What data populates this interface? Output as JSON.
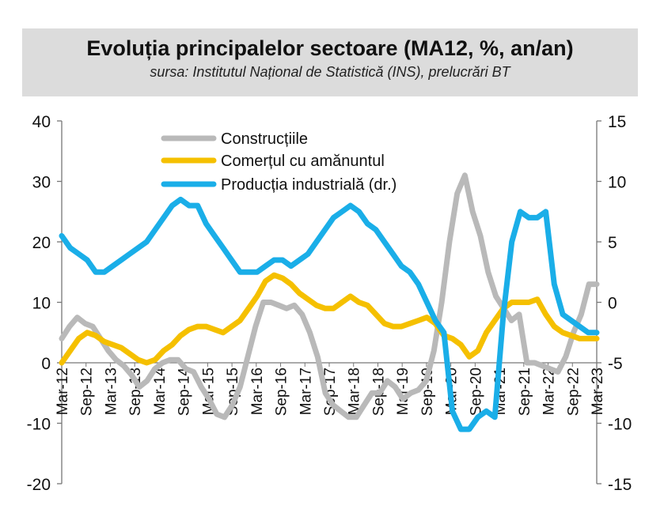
{
  "header": {
    "title": "Evoluția principalelor sectoare (MA12, %, an/an)",
    "subtitle": "sursa: Institutul Național de Statistică (INS), prelucrări BT"
  },
  "chart_data": {
    "type": "line",
    "title": "Evoluția principalelor sectoare (MA12, %, an/an)",
    "subtitle": "sursa: Institutul Național de Statistică (INS), prelucrări BT",
    "ylim": [
      -20,
      40
    ],
    "y2lim": [
      -15,
      15
    ],
    "yticks": [
      "40",
      "30",
      "20",
      "10",
      "0",
      "-10",
      "-20"
    ],
    "y2ticks": [
      "15",
      "10",
      "5",
      "0",
      "-5",
      "-10",
      "-15"
    ],
    "xticks": [
      "Mar-12",
      "Sep-12",
      "Mar-13",
      "Sep-13",
      "Mar-14",
      "Sep-14",
      "Mar-15",
      "Sep-15",
      "Mar-16",
      "Sep-16",
      "Mar-17",
      "Sep-17",
      "Mar-18",
      "Sep-18",
      "Mar-19",
      "Sep-19",
      "Mar-20",
      "Sep-20",
      "Mar-21",
      "Sep-21",
      "Mar-22",
      "Sep-22",
      "Mar-23"
    ],
    "legend_position": "top-center",
    "grid": false,
    "series": [
      {
        "name": "Construcțiile",
        "axis": "left",
        "color": "#b9b9b9",
        "values": [
          4,
          6,
          7.5,
          6.5,
          6,
          4,
          2,
          0.5,
          -0.5,
          -2,
          -4,
          -3,
          -1,
          0,
          0.5,
          0.5,
          -1,
          -1.5,
          -4,
          -6,
          -8.5,
          -9,
          -7,
          -4,
          1,
          6,
          10,
          10,
          9.5,
          9,
          9.5,
          8,
          5,
          1,
          -5,
          -7,
          -8,
          -9,
          -9,
          -7,
          -5,
          -5,
          -3,
          -4,
          -6,
          -5,
          -4.5,
          -3,
          2,
          10,
          20,
          28,
          31,
          25,
          21,
          15,
          11,
          9,
          7,
          8,
          0,
          0,
          -0.5,
          -1,
          -1.5,
          1,
          5,
          8,
          13,
          13
        ]
      },
      {
        "name": "Comerțul cu amănuntul",
        "axis": "left",
        "color": "#f5c000",
        "values": [
          0,
          2,
          4,
          5,
          4.5,
          3.5,
          3,
          2.5,
          1.5,
          0.5,
          0,
          0.5,
          2,
          3,
          4.5,
          5.5,
          6,
          6,
          5.5,
          5,
          6,
          7,
          9,
          11,
          13.5,
          14.5,
          14,
          13,
          11.5,
          10.5,
          9.5,
          9,
          9,
          10,
          11,
          10,
          9.5,
          8,
          6.5,
          6,
          6,
          6.5,
          7,
          7.5,
          6.5,
          4.5,
          4,
          3,
          1,
          2,
          5,
          7,
          9,
          10,
          10,
          10,
          10.5,
          8,
          6,
          5,
          4.5,
          4,
          4,
          4
        ]
      },
      {
        "name": "Producția industrială (dr.)",
        "axis": "right",
        "color": "#1aaee8",
        "values": [
          5.5,
          4.5,
          4,
          3.5,
          2.5,
          2.5,
          3,
          3.5,
          4,
          4.5,
          5,
          6,
          7,
          8,
          8.5,
          8,
          8,
          6.5,
          5.5,
          4.5,
          3.5,
          2.5,
          2.5,
          2.5,
          3,
          3.5,
          3.5,
          3,
          3.5,
          4,
          5,
          6,
          7,
          7.5,
          8,
          7.5,
          6.5,
          6,
          5,
          4,
          3,
          2.5,
          1.5,
          0,
          -1.5,
          -2.5,
          -9,
          -10.5,
          -10.5,
          -9.5,
          -9,
          -9.5,
          -1,
          5,
          7.5,
          7,
          7,
          7.5,
          1.5,
          -1,
          -1.5,
          -2,
          -2.5,
          -2.5
        ]
      }
    ]
  }
}
